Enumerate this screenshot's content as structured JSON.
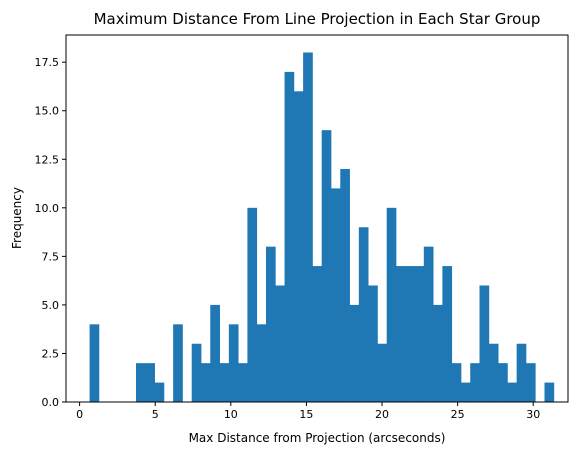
{
  "chart_data": {
    "type": "histogram",
    "title": "Maximum Distance From Line Projection in Each Star Group",
    "xlabel": "Max Distance from Projection (arcseconds)",
    "ylabel": "Frequency",
    "xlim": [
      -0.9,
      32.3
    ],
    "ylim": [
      0,
      18.9
    ],
    "xticks": [
      0,
      5,
      10,
      15,
      20,
      25,
      30
    ],
    "xtick_labels": [
      "0",
      "5",
      "10",
      "15",
      "20",
      "25",
      "30"
    ],
    "yticks": [
      0,
      2.5,
      5,
      7.5,
      10,
      12.5,
      15,
      17.5
    ],
    "ytick_labels": [
      "0.0",
      "2.5",
      "5.0",
      "7.5",
      "10.0",
      "12.5",
      "15.0",
      "17.5"
    ],
    "bin_start": 0.66,
    "bin_width": 0.614,
    "counts": [
      4,
      0,
      0,
      0,
      0,
      2,
      2,
      1,
      0,
      4,
      0,
      3,
      2,
      5,
      2,
      4,
      2,
      10,
      4,
      8,
      6,
      17,
      16,
      18,
      7,
      14,
      11,
      12,
      5,
      9,
      6,
      3,
      10,
      7,
      7,
      7,
      8,
      5,
      7,
      2,
      1,
      2,
      6,
      3,
      2,
      1,
      3,
      2,
      0,
      1
    ],
    "bar_color": "#1f77b4",
    "grid": false,
    "legend": "none"
  }
}
